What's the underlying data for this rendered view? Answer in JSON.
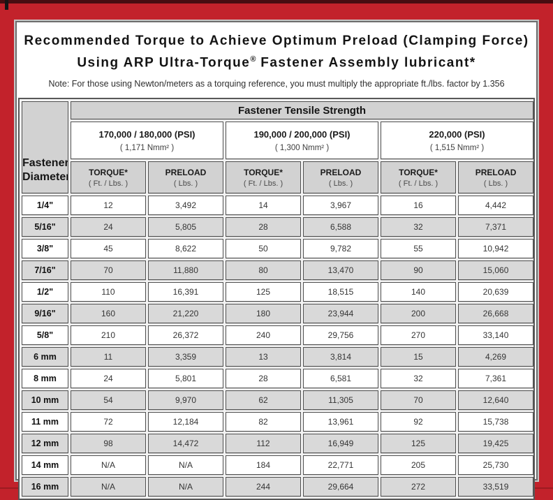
{
  "frame": {
    "border_color": "#c2222b",
    "top_strip_color": "#470d11"
  },
  "title": {
    "line1": "Recommended Torque to Achieve Optimum Preload (Clamping Force)",
    "line2_prefix": "Using ARP Ultra-Torque",
    "line2_reg": "®",
    "line2_suffix": " Fastener Assembly lubricant*"
  },
  "note": "Note: For those using Newton/meters as a torquing reference, you must multiply the appropriate ft./lbs. factor by 1.356",
  "table": {
    "corner_label_line1": "Fastener",
    "corner_label_line2": "Diameter",
    "tensile_header": "Fastener Tensile Strength",
    "groups": [
      {
        "psi": "170,000 / 180,000 (PSI)",
        "nmm": "( 1,171 Nmm² )"
      },
      {
        "psi": "190,000 / 200,000 (PSI)",
        "nmm": "( 1,300 Nmm² )"
      },
      {
        "psi": "220,000 (PSI)",
        "nmm": "( 1,515 Nmm² )"
      }
    ],
    "col_headers": {
      "torque_label": "TORQUE*",
      "torque_sub": "( Ft. / Lbs. )",
      "preload_label": "PRELOAD",
      "preload_sub": "( Lbs. )"
    },
    "rows": [
      {
        "diameter": "1/4\"",
        "values": [
          "12",
          "3,492",
          "14",
          "3,967",
          "16",
          "4,442"
        ]
      },
      {
        "diameter": "5/16\"",
        "values": [
          "24",
          "5,805",
          "28",
          "6,588",
          "32",
          "7,371"
        ]
      },
      {
        "diameter": "3/8\"",
        "values": [
          "45",
          "8,622",
          "50",
          "9,782",
          "55",
          "10,942"
        ]
      },
      {
        "diameter": "7/16\"",
        "values": [
          "70",
          "11,880",
          "80",
          "13,470",
          "90",
          "15,060"
        ]
      },
      {
        "diameter": "1/2\"",
        "values": [
          "110",
          "16,391",
          "125",
          "18,515",
          "140",
          "20,639"
        ]
      },
      {
        "diameter": "9/16\"",
        "values": [
          "160",
          "21,220",
          "180",
          "23,944",
          "200",
          "26,668"
        ]
      },
      {
        "diameter": "5/8\"",
        "values": [
          "210",
          "26,372",
          "240",
          "29,756",
          "270",
          "33,140"
        ]
      },
      {
        "diameter": "6 mm",
        "values": [
          "11",
          "3,359",
          "13",
          "3,814",
          "15",
          "4,269"
        ]
      },
      {
        "diameter": "8 mm",
        "values": [
          "24",
          "5,801",
          "28",
          "6,581",
          "32",
          "7,361"
        ]
      },
      {
        "diameter": "10 mm",
        "values": [
          "54",
          "9,970",
          "62",
          "11,305",
          "70",
          "12,640"
        ]
      },
      {
        "diameter": "11 mm",
        "values": [
          "72",
          "12,184",
          "82",
          "13,961",
          "92",
          "15,738"
        ]
      },
      {
        "diameter": "12 mm",
        "values": [
          "98",
          "14,472",
          "112",
          "16,949",
          "125",
          "19,425"
        ]
      },
      {
        "diameter": "14 mm",
        "values": [
          "N/A",
          "N/A",
          "184",
          "22,771",
          "205",
          "25,730"
        ]
      },
      {
        "diameter": "16 mm",
        "values": [
          "N/A",
          "N/A",
          "244",
          "29,664",
          "272",
          "33,519"
        ]
      }
    ]
  }
}
